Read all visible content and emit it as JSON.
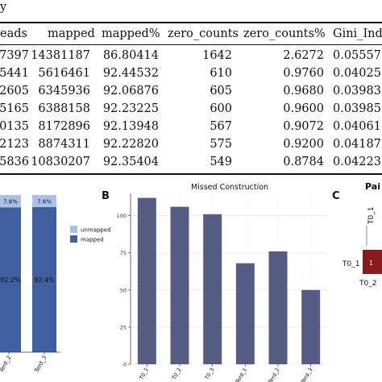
{
  "table": {
    "title_fragment": "y",
    "headers": [
      "eads",
      "mapped",
      "mapped%",
      "zero_counts",
      "zero_counts%",
      "Gini_Ind"
    ],
    "rows": [
      [
        "7397",
        "14381187",
        "86.80414",
        "1642",
        "2.6272",
        "0.05557"
      ],
      [
        "5441",
        "5616461",
        "92.44532",
        "610",
        "0.9760",
        "0.04025"
      ],
      [
        "2605",
        "6345936",
        "92.06876",
        "605",
        "0.9680",
        "0.03983"
      ],
      [
        "5165",
        "6388158",
        "92.23225",
        "600",
        "0.9600",
        "0.03985"
      ],
      [
        "0135",
        "8172896",
        "92.13948",
        "567",
        "0.9072",
        "0.04061"
      ],
      [
        "2123",
        "8874311",
        "92.22820",
        "575",
        "0.9200",
        "0.04187"
      ],
      [
        "5836",
        "10830207",
        "92.35404",
        "549",
        "0.8784",
        "0.04223"
      ]
    ]
  },
  "panel_a": {
    "chart_data": {
      "type": "bar",
      "stacked": true,
      "categories": [
        "Terd_2",
        "Terd_3"
      ],
      "series": [
        {
          "name": "mapped",
          "values": [
            92.2,
            92.4
          ],
          "labels": [
            "92.2%",
            "92.4%"
          ],
          "color": "#3f5fa0"
        },
        {
          "name": "unmapped",
          "values": [
            7.8,
            7.6
          ],
          "labels": [
            "7.8%",
            "7.6%"
          ],
          "color": "#a9c1e6"
        }
      ],
      "ylim": [
        0,
        100
      ],
      "legend": [
        "unmapped",
        "mapped"
      ]
    }
  },
  "panel_b": {
    "label": "B",
    "chart_data": {
      "type": "bar",
      "title": "Missed Construction",
      "categories": [
        "T0_1",
        "T0_2",
        "T0_3",
        "Terd_1",
        "Terd_2",
        "Terd_3"
      ],
      "values": [
        112,
        106,
        101,
        68,
        76,
        50
      ],
      "ylim": [
        0,
        115
      ],
      "yticks": [
        0,
        25,
        50,
        75,
        100
      ],
      "color": "#565c84",
      "grid": true
    }
  },
  "panel_c": {
    "label": "C",
    "title_fragment": "Pai",
    "col_label": "T0_1",
    "row_labels": [
      "T0_1",
      "T0_2"
    ],
    "cell_value": "1",
    "cell_color": "#8b1a1a"
  }
}
